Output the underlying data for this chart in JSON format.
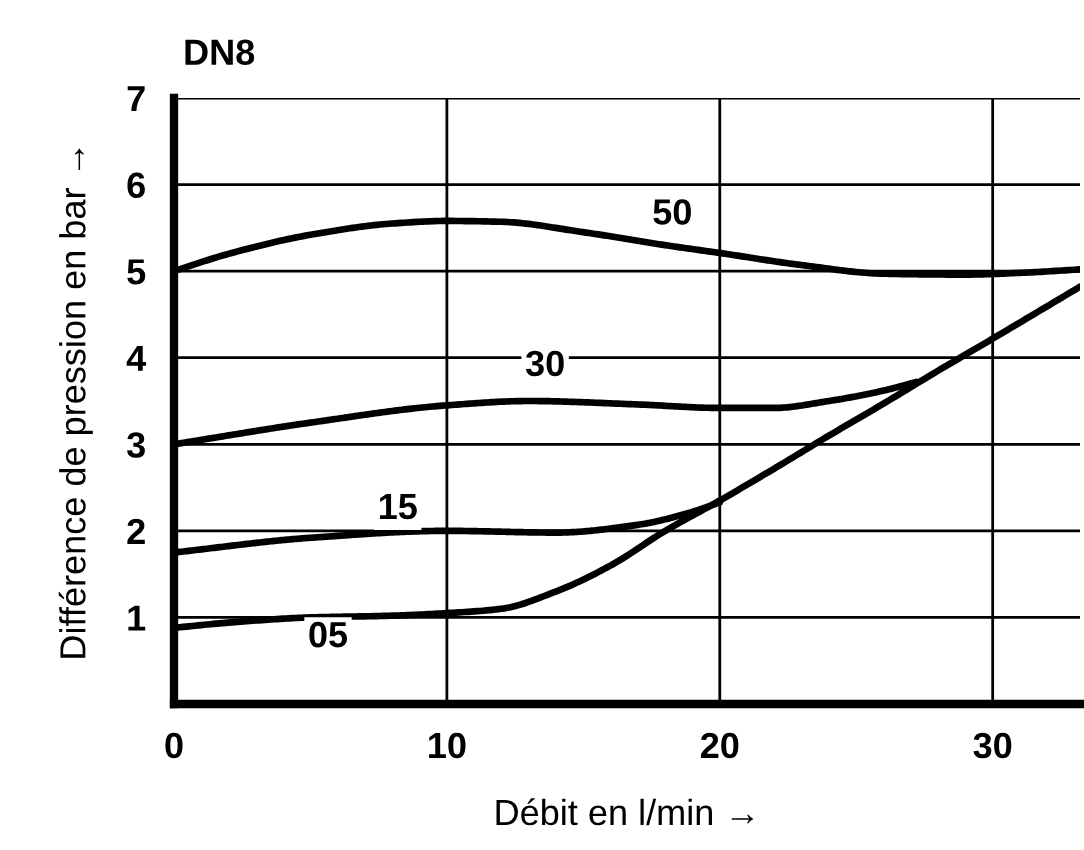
{
  "chart_data": {
    "type": "line",
    "title": "DN8",
    "xlabel": "Débit en l/min →",
    "ylabel": "Différence de pression en bar →",
    "xlim": [
      0,
      33.2
    ],
    "xticks": [
      0,
      10,
      20,
      30
    ],
    "ylim": [
      0,
      7
    ],
    "yticks": [
      1,
      2,
      3,
      4,
      5,
      6,
      7
    ],
    "grid": true,
    "legend": false,
    "marker": "none",
    "line_style": "solid",
    "series": [
      {
        "name": "05",
        "color": "#000000",
        "x": [
          0,
          2,
          5,
          8,
          10,
          12,
          14,
          16,
          18,
          20,
          22,
          24,
          26,
          28,
          30,
          33.2
        ],
        "values": [
          0.88,
          0.94,
          1.0,
          1.02,
          1.05,
          1.1,
          1.3,
          1.6,
          2.0,
          2.35,
          2.72,
          3.1,
          3.47,
          3.85,
          4.22,
          4.82
        ]
      },
      {
        "name": "15",
        "color": "#000000",
        "x": [
          0,
          5,
          10,
          14,
          17,
          19,
          20
        ],
        "values": [
          1.75,
          1.92,
          2.0,
          1.98,
          2.07,
          2.22,
          2.33
        ]
      },
      {
        "name": "30",
        "color": "#000000",
        "x": [
          0,
          5,
          10,
          13,
          17,
          20,
          22,
          24,
          26,
          27.2
        ],
        "values": [
          3.0,
          3.25,
          3.45,
          3.5,
          3.46,
          3.42,
          3.42,
          3.5,
          3.62,
          3.72
        ]
      },
      {
        "name": "50",
        "color": "#000000",
        "x": [
          0,
          2,
          5,
          8,
          10,
          12,
          15,
          18,
          20,
          23,
          26,
          29,
          31,
          33.2
        ],
        "values": [
          5.0,
          5.2,
          5.42,
          5.55,
          5.58,
          5.57,
          5.45,
          5.3,
          5.21,
          5.07,
          4.97,
          4.96,
          4.98,
          5.02
        ]
      }
    ]
  }
}
